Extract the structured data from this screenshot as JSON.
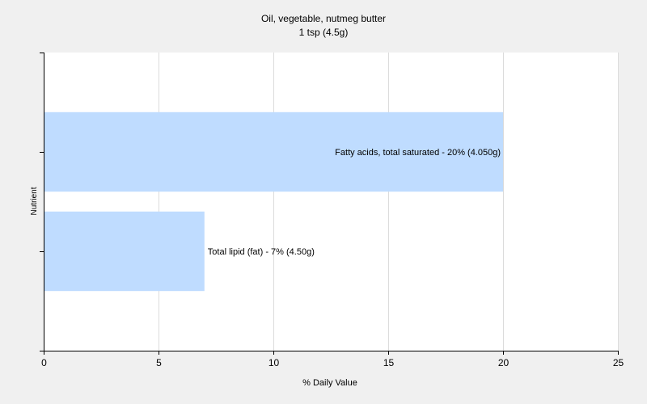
{
  "chart_data": {
    "type": "bar",
    "orientation": "horizontal",
    "title": "Oil, vegetable, nutmeg butter",
    "subtitle": "1 tsp (4.5g)",
    "xlabel": "% Daily Value",
    "ylabel": "Nutrient",
    "xlim": [
      0,
      25
    ],
    "xticks": [
      "0",
      "5",
      "10",
      "15",
      "20",
      "25"
    ],
    "grid": "vertical",
    "colors": {
      "bar": "#bfdcff",
      "background": "#ffffff",
      "page": "#f0f0f0",
      "grid": "#dcdcdc",
      "axis": "#000000"
    },
    "bars": [
      {
        "label": "Fatty acids, total saturated - 20% (4.050g)",
        "value": 20
      },
      {
        "label": "Total lipid (fat) - 7% (4.50g)",
        "value": 7
      }
    ]
  }
}
